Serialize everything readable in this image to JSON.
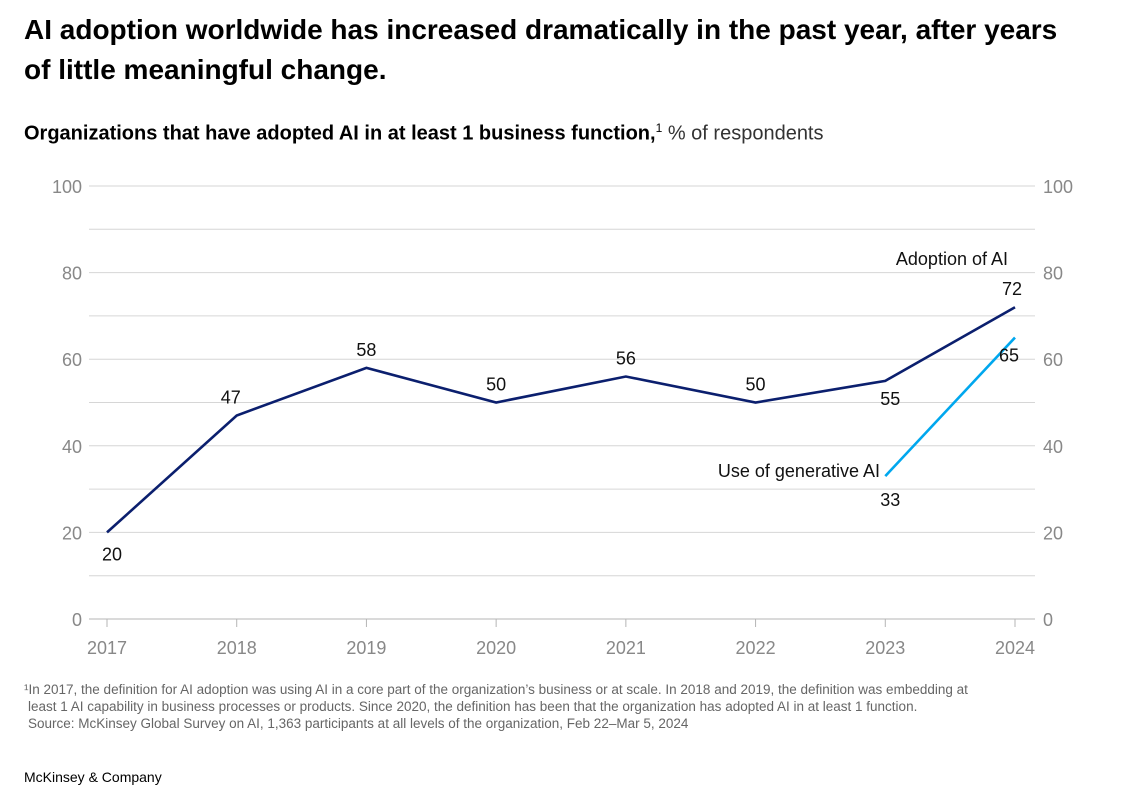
{
  "title": "AI adoption worldwide has increased dramatically in the past year, after years of little meaningful change.",
  "subtitle": {
    "bold": "Organizations that have adopted AI in at least 1 business function,",
    "sup": "1",
    "unit": " % of respondents"
  },
  "chart_data": {
    "type": "line",
    "x": [
      "2017",
      "2018",
      "2019",
      "2020",
      "2021",
      "2022",
      "2023",
      "2024"
    ],
    "ylim": [
      0,
      100
    ],
    "yticks": [
      "0",
      "20",
      "40",
      "60",
      "80",
      "100"
    ],
    "grid": true,
    "series": [
      {
        "name": "Adoption of AI",
        "color": "#0b1f6e",
        "x": [
          "2017",
          "2018",
          "2019",
          "2020",
          "2021",
          "2022",
          "2023",
          "2024"
        ],
        "values": [
          20,
          47,
          58,
          50,
          56,
          50,
          55,
          72
        ]
      },
      {
        "name": "Use of generative AI",
        "color": "#00a7ee",
        "x": [
          "2023",
          "2024"
        ],
        "values": [
          33,
          65
        ]
      }
    ]
  },
  "footnote": [
    "¹In 2017, the definition for AI adoption was using AI in a core part of the organization’s business or at scale. In 2018 and 2019, the definition was embedding at",
    "least 1 AI capability in business processes or products. Since 2020, the definition has been that the organization has adopted AI in at least 1 function.",
    "Source: McKinsey Global Survey on AI, 1,363 participants at all levels of the organization, Feb 22–Mar 5, 2024"
  ],
  "brand": "McKinsey & Company"
}
